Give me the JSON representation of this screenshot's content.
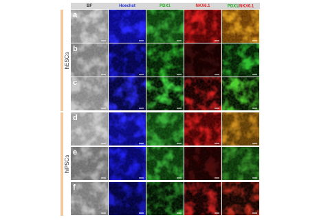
{
  "columns": [
    "BF",
    "Hoechst",
    "PDX1",
    "NKX6.1"
  ],
  "merged_header": {
    "first": "PDX1",
    "separator": "/",
    "second": "NKX6.1"
  },
  "rows": [
    "a",
    "b",
    "c",
    "d",
    "e",
    "f"
  ],
  "groups": [
    "hESCs",
    "hiPSCs"
  ]
}
